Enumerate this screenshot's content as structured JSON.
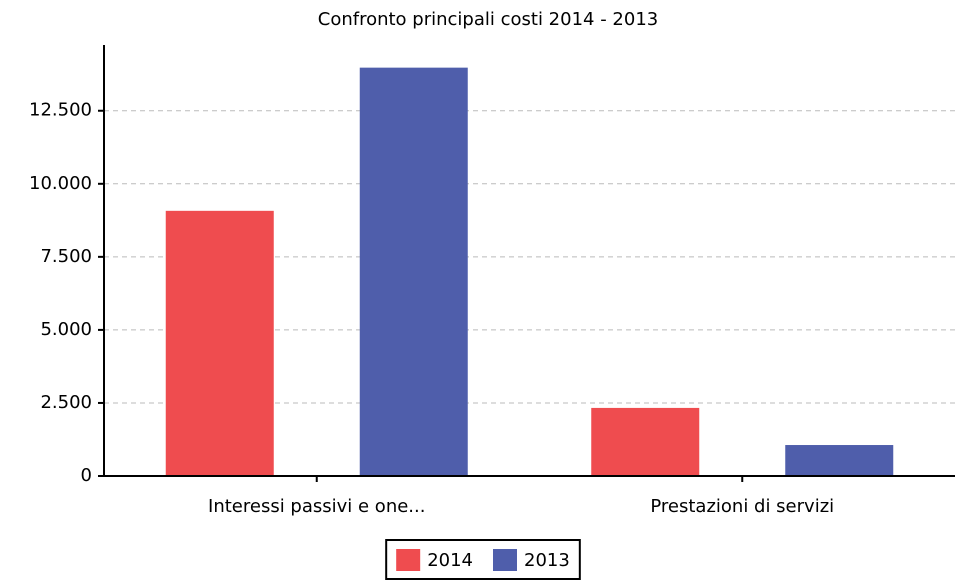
{
  "chart_data": {
    "type": "bar",
    "title": "Confronto principali costi 2014 - 2013",
    "categories": [
      "Interessi passivi e one...",
      "Prestazioni di servizi"
    ],
    "series": [
      {
        "name": "2014",
        "color": "#ef4c4f",
        "values": [
          9075,
          2330
        ]
      },
      {
        "name": "2013",
        "color": "#4f5eab",
        "values": [
          13975,
          1060
        ]
      }
    ],
    "ylim": [
      0,
      14750
    ],
    "yticks": [
      0,
      {
        "value": 2500,
        "label": "2.500"
      },
      {
        "value": 5000,
        "label": "5.000"
      },
      {
        "value": 7500,
        "label": "7.500"
      },
      {
        "value": 10000,
        "label": "10.000"
      },
      {
        "value": 12500,
        "label": "12.500"
      }
    ],
    "grid": true
  }
}
